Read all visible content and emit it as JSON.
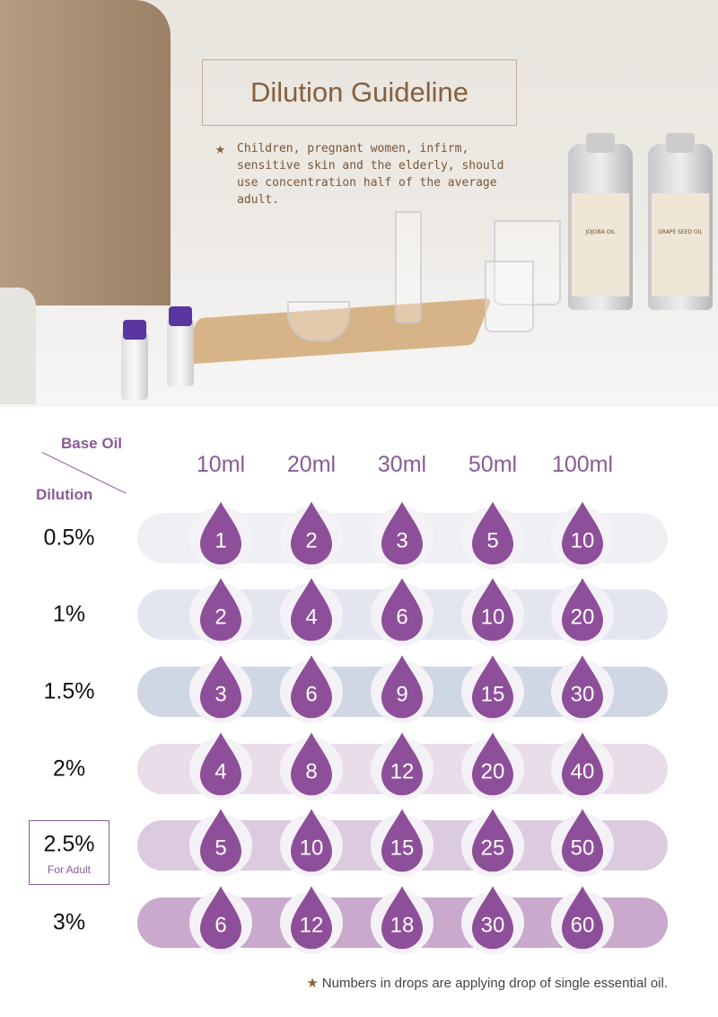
{
  "header": {
    "title": "Dilution Guideline",
    "note": "Children, pregnant women, infirm, sensitive skin and the elderly, should use concentration half of the average adult.",
    "bottles": [
      "JOJOBA OIL",
      "GRAPE SEED OIL"
    ]
  },
  "table": {
    "corner_top": "Base Oil",
    "corner_bottom": "Dilution",
    "columns": [
      "10ml",
      "20ml",
      "30ml",
      "50ml",
      "100ml"
    ],
    "rows": [
      {
        "label": "0.5%",
        "values": [
          "1",
          "2",
          "3",
          "5",
          "10"
        ],
        "color": "#eef0f4"
      },
      {
        "label": "1%",
        "values": [
          "2",
          "4",
          "6",
          "10",
          "20"
        ],
        "color": "#e3e6ef"
      },
      {
        "label": "1.5%",
        "values": [
          "3",
          "6",
          "9",
          "15",
          "30"
        ],
        "color": "#d0d6e4"
      },
      {
        "label": "2%",
        "values": [
          "4",
          "8",
          "12",
          "20",
          "40"
        ],
        "color": "#e9dde9"
      },
      {
        "label": "2.5%",
        "values": [
          "5",
          "10",
          "15",
          "25",
          "50"
        ],
        "color": "#dccbdf"
      },
      {
        "label": "3%",
        "values": [
          "6",
          "12",
          "18",
          "30",
          "60"
        ],
        "color": "#c9a9cc"
      }
    ],
    "highlight_sub": "For Adult",
    "drop_color": "#8e4f9a"
  },
  "footer": {
    "note": "Numbers in drops are applying drop of single essential oil."
  }
}
